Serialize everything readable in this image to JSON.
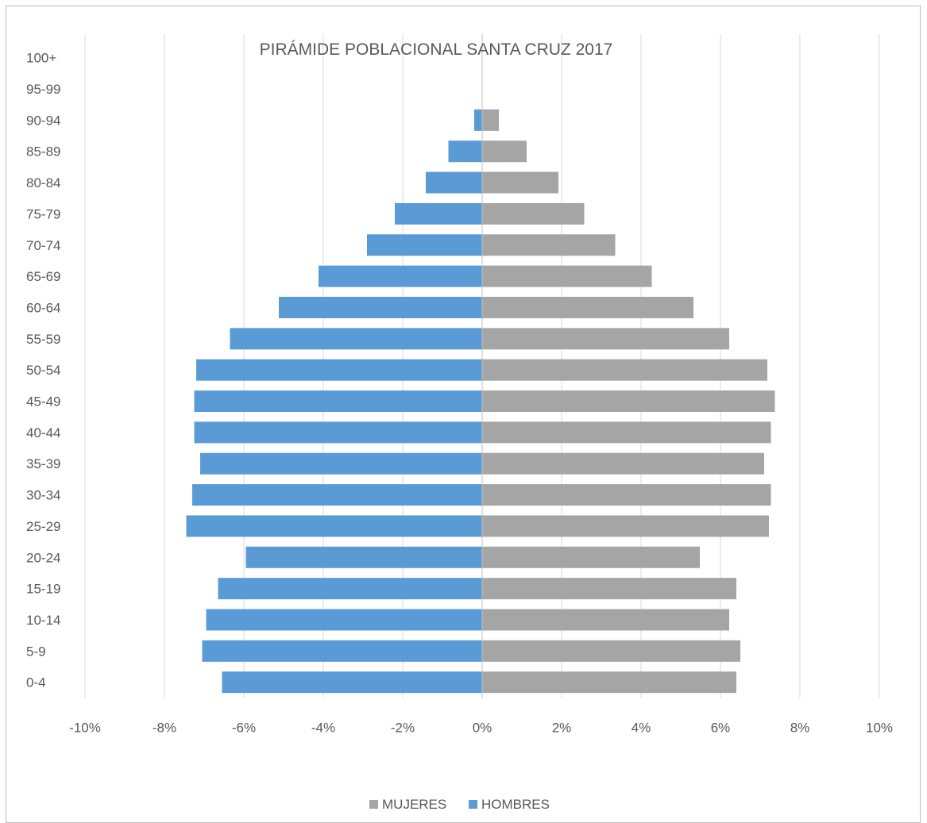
{
  "chart_data": {
    "type": "bar",
    "orientation": "horizontal",
    "title": "PIRÁMIDE POBLACIONAL SANTA CRUZ 2017",
    "categories": [
      "0-4",
      "5-9",
      "10-14",
      "15-19",
      "20-24",
      "25-29",
      "30-34",
      "35-39",
      "40-44",
      "45-49",
      "50-54",
      "55-59",
      "60-64",
      "65-69",
      "70-74",
      "75-79",
      "80-84",
      "85-89",
      "90-94",
      "95-99",
      "100+"
    ],
    "series": [
      {
        "name": "HOMBRES",
        "color": "#5b9bd5",
        "values": [
          -6.55,
          -7.05,
          -6.95,
          -6.65,
          -5.95,
          -7.45,
          -7.3,
          -7.1,
          -7.25,
          -7.25,
          -7.2,
          -6.35,
          -5.12,
          -4.12,
          -2.9,
          -2.2,
          -1.42,
          -0.85,
          -0.2,
          0,
          0
        ]
      },
      {
        "name": "MUJERES",
        "color": "#a5a5a5",
        "values": [
          6.4,
          6.5,
          6.22,
          6.4,
          5.48,
          7.22,
          7.27,
          7.1,
          7.27,
          7.37,
          7.18,
          6.22,
          5.32,
          4.27,
          3.35,
          2.57,
          1.92,
          1.12,
          0.42,
          0,
          0
        ]
      }
    ],
    "xlim": [
      -10,
      10
    ],
    "x_ticks": [
      -10,
      -8,
      -6,
      -4,
      -2,
      0,
      2,
      4,
      6,
      8,
      10
    ],
    "x_tick_labels": [
      "-10%",
      "-8%",
      "-6%",
      "-4%",
      "-2%",
      "0%",
      "2%",
      "4%",
      "6%",
      "8%",
      "10%"
    ],
    "grid": true,
    "legend": {
      "position": "bottom",
      "entries": [
        {
          "label": "MUJERES",
          "color": "#a5a5a5"
        },
        {
          "label": "HOMBRES",
          "color": "#5b9bd5"
        }
      ]
    }
  }
}
